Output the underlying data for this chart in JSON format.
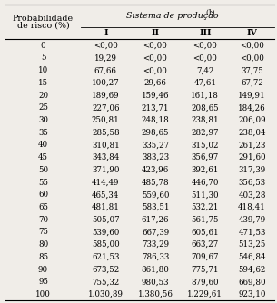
{
  "title_left_line1": "Probabilidade",
  "title_left_line2": "de risco (%)",
  "title_right": "Sistema de produção",
  "title_right_sup": "(1)",
  "col_headers": [
    "I",
    "II",
    "III",
    "IV"
  ],
  "rows": [
    [
      "0",
      "<0,00",
      "<0,00",
      "<0,00",
      "<0,00"
    ],
    [
      "5",
      "19,29",
      "<0,00",
      "<0,00",
      "<0,00"
    ],
    [
      "10",
      "67,66",
      "<0,00",
      "7,42",
      "37,75"
    ],
    [
      "15",
      "100,27",
      "29,66",
      "47,61",
      "67,72"
    ],
    [
      "20",
      "189,69",
      "159,46",
      "161,18",
      "149,91"
    ],
    [
      "25",
      "227,06",
      "213,71",
      "208,65",
      "184,26"
    ],
    [
      "30",
      "250,81",
      "248,18",
      "238,81",
      "206,09"
    ],
    [
      "35",
      "285,58",
      "298,65",
      "282,97",
      "238,04"
    ],
    [
      "40",
      "310,81",
      "335,27",
      "315,02",
      "261,23"
    ],
    [
      "45",
      "343,84",
      "383,23",
      "356,97",
      "291,60"
    ],
    [
      "50",
      "371,90",
      "423,96",
      "392,61",
      "317,39"
    ],
    [
      "55",
      "414,49",
      "485,78",
      "446,70",
      "356,53"
    ],
    [
      "60",
      "465,34",
      "559,60",
      "511,30",
      "403,28"
    ],
    [
      "65",
      "481,81",
      "583,51",
      "532,21",
      "418,41"
    ],
    [
      "70",
      "505,07",
      "617,26",
      "561,75",
      "439,79"
    ],
    [
      "75",
      "539,60",
      "667,39",
      "605,61",
      "471,53"
    ],
    [
      "80",
      "585,00",
      "733,29",
      "663,27",
      "513,25"
    ],
    [
      "85",
      "621,53",
      "786,33",
      "709,67",
      "546,84"
    ],
    [
      "90",
      "673,52",
      "861,80",
      "775,71",
      "594,62"
    ],
    [
      "95",
      "755,32",
      "980,53",
      "879,60",
      "669,80"
    ],
    [
      "100",
      "1.030,89",
      "1.380,56",
      "1.229,61",
      "923,10"
    ]
  ],
  "bg_color": "#f0ede8",
  "font_size": 6.2,
  "header_font_size": 6.8
}
